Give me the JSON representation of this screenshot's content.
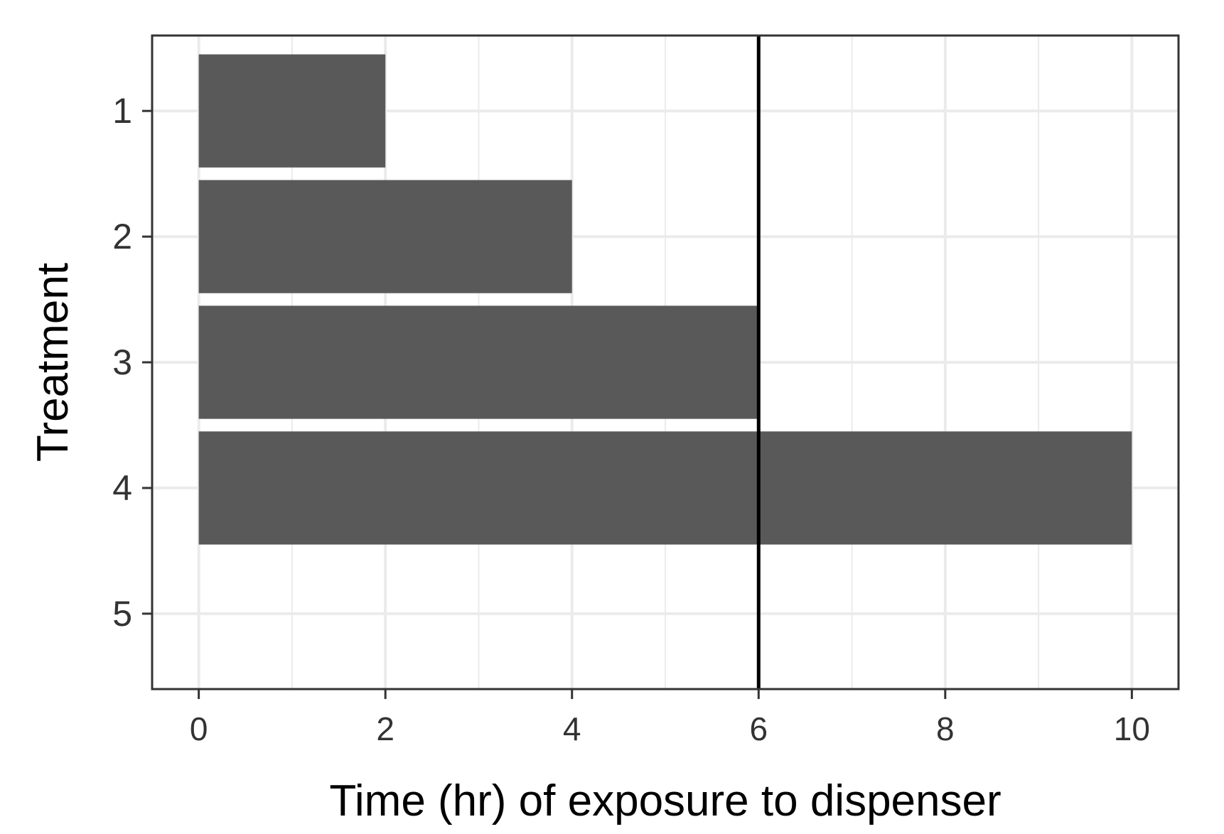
{
  "chart_data": {
    "type": "bar",
    "orientation": "horizontal",
    "title": "",
    "xlabel": "Time (hr) of exposure to dispenser",
    "ylabel": "Treatment",
    "categories": [
      "1",
      "2",
      "3",
      "4",
      "5"
    ],
    "values": [
      2,
      4,
      6,
      10,
      0
    ],
    "xlim": [
      -0.5,
      10.5
    ],
    "x_ticks": [
      "0",
      "2",
      "4",
      "6",
      "8",
      "10"
    ],
    "reference_line": {
      "axis": "x",
      "value": 6
    },
    "grid": true,
    "legend": "none",
    "colors": {
      "bar": "#595959",
      "grid": "#ebebeb",
      "axis": "#333333",
      "reference_line": "#000000"
    }
  }
}
